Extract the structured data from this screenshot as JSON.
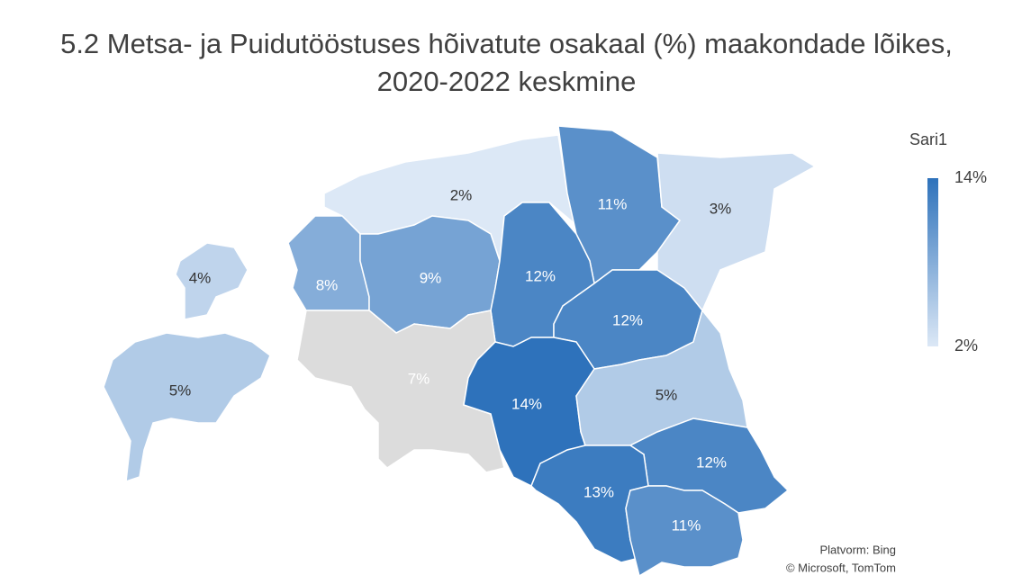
{
  "chart_data": {
    "type": "choropleth",
    "title": "5.2 Metsa- ja Puidutööstuses hõivatute osakaal (%) maakondade lõikes, 2020-2022 keskmine",
    "values": [
      2,
      11,
      3,
      4,
      8,
      9,
      12,
      12,
      5,
      7,
      14,
      5,
      12,
      13,
      11
    ],
    "value_labels": [
      "2%",
      "11%",
      "3%",
      "4%",
      "8%",
      "9%",
      "12%",
      "12%",
      "5%",
      "7%",
      "14%",
      "5%",
      "12%",
      "13%",
      "11%"
    ],
    "colors": [
      "#dce8f6",
      "#5a90ca",
      "#cedef1",
      "#bfd4ec",
      "#85add9",
      "#76a3d4",
      "#4b86c5",
      "#4b86c5",
      "#b1cbe7",
      "#dcdcdc",
      "#2e72bb",
      "#b1cbe7",
      "#4b86c5",
      "#3c7cc0",
      "#5a90ca"
    ],
    "label_colors": [
      "#333333",
      "#ffffff",
      "#333333",
      "#333333",
      "#ffffff",
      "#ffffff",
      "#ffffff",
      "#ffffff",
      "#333333",
      "#ffffff",
      "#ffffff",
      "#333333",
      "#ffffff",
      "#ffffff",
      "#ffffff"
    ],
    "legend": {
      "title": "Sari1",
      "range": [
        2,
        14
      ],
      "color_low": "#dce8f6",
      "color_high": "#2e72bb",
      "ticks": [
        {
          "value": 14,
          "label": "14%"
        },
        {
          "value": 2,
          "label": "2%"
        }
      ]
    },
    "attribution": [
      "Platvorm: Bing",
      "© Microsoft, TomTom"
    ]
  }
}
